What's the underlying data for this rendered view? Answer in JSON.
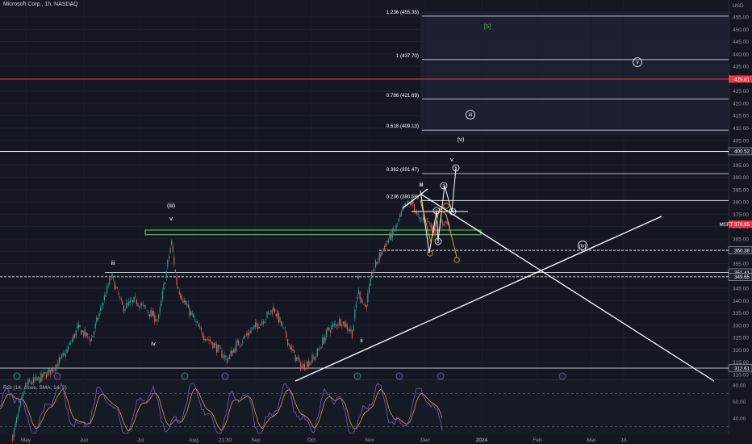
{
  "header": {
    "symbol_title": "Microsoft Corp., 1h, NASDAQ",
    "rsi_label": "RSI (14, close, SMA, 14, 2)"
  },
  "colors": {
    "background": "#141722",
    "up_candle": "#26a69a",
    "down_candle": "#ef5350",
    "rsi_line": "#7e57c2",
    "rsi_ma": "#f5b041",
    "fib_line": "#d1d4dc",
    "red_line": "#f23645",
    "green_zone": "#4caf50"
  },
  "chart_data": [
    {
      "type": "candlestick",
      "title": "Microsoft Corp., 1h, NASDAQ",
      "price_axis": {
        "unit_label": "USD",
        "ticks": [
          455,
          450,
          445,
          440,
          435,
          430,
          425,
          420,
          415,
          410,
          405,
          400,
          395,
          390,
          385,
          380,
          375,
          370,
          365,
          360,
          355,
          350,
          345,
          340,
          335,
          330,
          325,
          320,
          315,
          310
        ],
        "range": [
          307,
          458
        ]
      },
      "time_axis": {
        "ticks": [
          "May",
          "Jun",
          "Jul",
          "Aug",
          "21:30",
          "Sep",
          "Oct",
          "Nov",
          "Dec",
          "2024",
          "Feb",
          "Mar",
          "18"
        ]
      },
      "price_badges": [
        {
          "label": "429.81",
          "value": 429.81,
          "style": "red"
        },
        {
          "label": "400.52",
          "value": 400.52,
          "style": "dark"
        },
        {
          "label": "MSFT 370.95",
          "value": 370.95,
          "style": "red"
        },
        {
          "label": "360.38",
          "value": 360.38,
          "style": "dark"
        },
        {
          "label": "351.41",
          "value": 351.41,
          "style": "dark"
        },
        {
          "label": "349.65",
          "value": 349.65,
          "style": "dark"
        },
        {
          "label": "312.61",
          "value": 312.61,
          "style": "dark"
        }
      ],
      "fib_levels": [
        {
          "label": "1.236 (455.35)",
          "value": 455.35
        },
        {
          "label": "1 (437.70)",
          "value": 437.7
        },
        {
          "label": "0.786 (421.69)",
          "value": 421.69
        },
        {
          "label": "0.618 (409.13)",
          "value": 409.13
        },
        {
          "label": "0.382 (391.47)",
          "value": 391.47
        },
        {
          "label": "0.236 (380.58)",
          "value": 380.58
        }
      ],
      "price_path": [
        [
          "2023-04-24",
          285
        ],
        [
          "2023-05-01",
          306
        ],
        [
          "2023-05-08",
          308
        ],
        [
          "2023-05-15",
          312
        ],
        [
          "2023-05-22",
          318
        ],
        [
          "2023-05-29",
          329
        ],
        [
          "2023-06-05",
          324
        ],
        [
          "2023-06-12",
          341
        ],
        [
          "2023-06-16",
          350
        ],
        [
          "2023-06-22",
          337
        ],
        [
          "2023-06-29",
          340
        ],
        [
          "2023-07-05",
          336
        ],
        [
          "2023-07-11",
          332
        ],
        [
          "2023-07-18",
          364
        ],
        [
          "2023-07-21",
          346
        ],
        [
          "2023-07-26",
          338
        ],
        [
          "2023-08-03",
          327
        ],
        [
          "2023-08-10",
          322
        ],
        [
          "2023-08-17",
          316
        ],
        [
          "2023-08-22",
          322
        ],
        [
          "2023-08-30",
          328
        ],
        [
          "2023-09-05",
          332
        ],
        [
          "2023-09-11",
          337
        ],
        [
          "2023-09-15",
          330
        ],
        [
          "2023-09-21",
          319
        ],
        [
          "2023-09-26",
          313
        ],
        [
          "2023-10-03",
          317
        ],
        [
          "2023-10-10",
          328
        ],
        [
          "2023-10-17",
          332
        ],
        [
          "2023-10-23",
          327
        ],
        [
          "2023-10-26",
          344
        ],
        [
          "2023-10-30",
          337
        ],
        [
          "2023-11-03",
          352
        ],
        [
          "2023-11-09",
          362
        ],
        [
          "2023-11-15",
          369
        ],
        [
          "2023-11-20",
          378
        ],
        [
          "2023-11-24",
          380
        ],
        [
          "2023-11-28",
          372
        ],
        [
          "2023-12-01",
          374
        ],
        [
          "2023-12-06",
          368
        ],
        [
          "2023-12-11",
          372
        ],
        [
          "2023-12-14",
          370.95
        ]
      ],
      "rsi": {
        "ticks": [
          80,
          60,
          40
        ],
        "levels": [
          70,
          30
        ]
      },
      "wave_labels": [
        "[5]",
        "v",
        "iii",
        "(v)",
        "(iii)",
        "v",
        "iii",
        "iv",
        "iii",
        "i",
        "ii",
        "(iv)"
      ],
      "circled_labels": [
        "v",
        "iii",
        "5",
        "3",
        "1",
        "4",
        "2"
      ]
    }
  ]
}
